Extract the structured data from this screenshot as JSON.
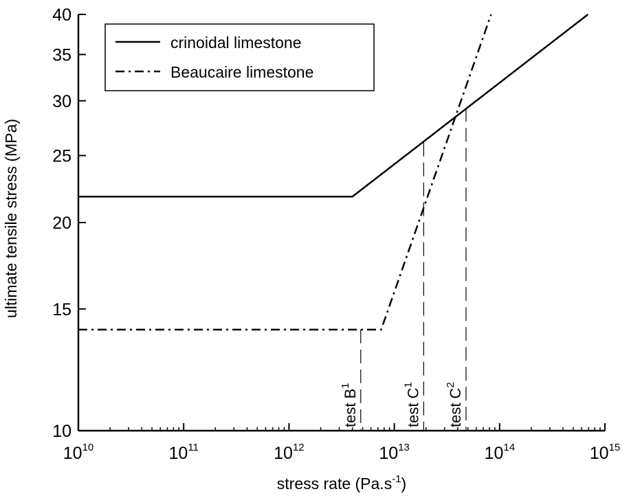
{
  "chart_data": {
    "type": "line",
    "xlabel": "stress rate (Pa.s",
    "xlabel_sup": "-1",
    "xlabel_close": ")",
    "ylabel": "ultimate tensile stress (MPa)",
    "xscale": "log",
    "yscale": "log",
    "xlim": [
      10000000000.0,
      1000000000000000.0
    ],
    "ylim": [
      10,
      40
    ],
    "x_ticks": [
      {
        "base": "10",
        "exp": "10"
      },
      {
        "base": "10",
        "exp": "11"
      },
      {
        "base": "10",
        "exp": "12"
      },
      {
        "base": "10",
        "exp": "13"
      },
      {
        "base": "10",
        "exp": "14"
      },
      {
        "base": "10",
        "exp": "15"
      }
    ],
    "y_ticks": [
      "10",
      "15",
      "20",
      "25",
      "30",
      "35",
      "40"
    ],
    "legend_position": "top-left",
    "series": [
      {
        "name": "crinoidal limestone",
        "style": "solid",
        "x": [
          10000000000.0,
          4000000000000.0,
          690000000000000.0
        ],
        "y": [
          21.8,
          21.8,
          40
        ]
      },
      {
        "name": "Beaucaire limestone",
        "style": "dash-dot",
        "x": [
          10000000000.0,
          7500000000000.0,
          83000000000000.0
        ],
        "y": [
          14.0,
          14.0,
          40
        ]
      }
    ],
    "annotations": [
      {
        "text": "test B",
        "sup": "1",
        "x": 4800000000000.0,
        "y_top": 14.0
      },
      {
        "text": "test C",
        "sup": "1",
        "x": 19000000000000.0,
        "y_top": 26.1
      },
      {
        "text": "test C",
        "sup": "2",
        "x": 48000000000000.0,
        "y_top": 29.3
      }
    ]
  }
}
